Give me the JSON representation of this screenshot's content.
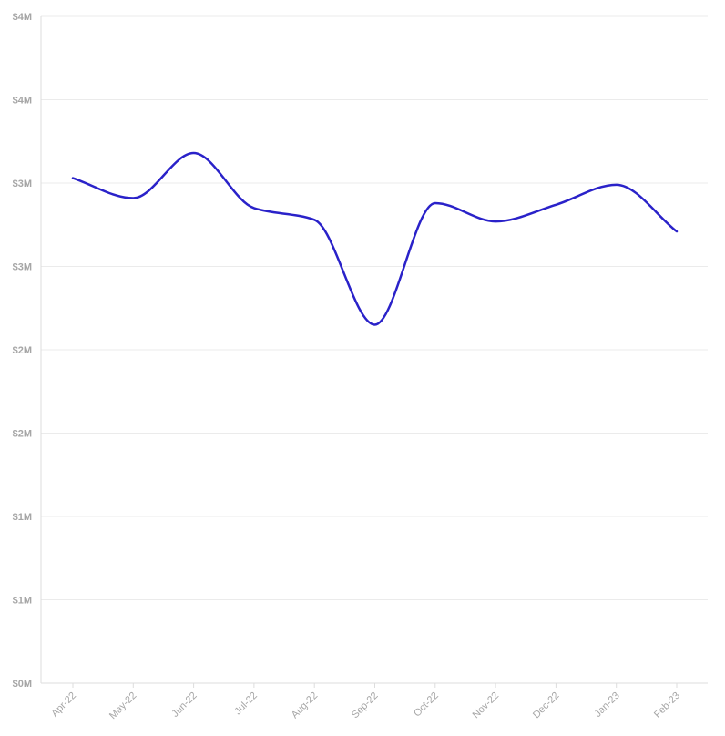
{
  "chart_data": {
    "type": "line",
    "title": "",
    "xlabel": "",
    "ylabel": "",
    "categories": [
      "Apr-22",
      "May-22",
      "Jun-22",
      "Jul-22",
      "Aug-22",
      "Sep-22",
      "Oct-22",
      "Nov-22",
      "Dec-22",
      "Jan-23",
      "Feb-23"
    ],
    "series": [
      {
        "values": [
          3030000,
          2910000,
          3180000,
          2850000,
          2780000,
          2150000,
          2880000,
          2770000,
          2870000,
          2990000,
          2710000
        ],
        "color": "#2a22c9"
      }
    ],
    "y_ticks": [
      {
        "value": 0,
        "label": "$0M"
      },
      {
        "value": 500000,
        "label": "$1M"
      },
      {
        "value": 1000000,
        "label": "$1M"
      },
      {
        "value": 1500000,
        "label": "$2M"
      },
      {
        "value": 2000000,
        "label": "$2M"
      },
      {
        "value": 2500000,
        "label": "$3M"
      },
      {
        "value": 3000000,
        "label": "$3M"
      },
      {
        "value": 3500000,
        "label": "$4M"
      },
      {
        "value": 4000000,
        "label": "$4M"
      }
    ],
    "ylim": [
      0,
      4000000
    ],
    "grid": true,
    "legend": "none",
    "colors": {
      "line": "#2a22c9",
      "grid": "#ebebeb",
      "axis": "#dddddd",
      "tick_text": "#a6a6a6"
    }
  }
}
